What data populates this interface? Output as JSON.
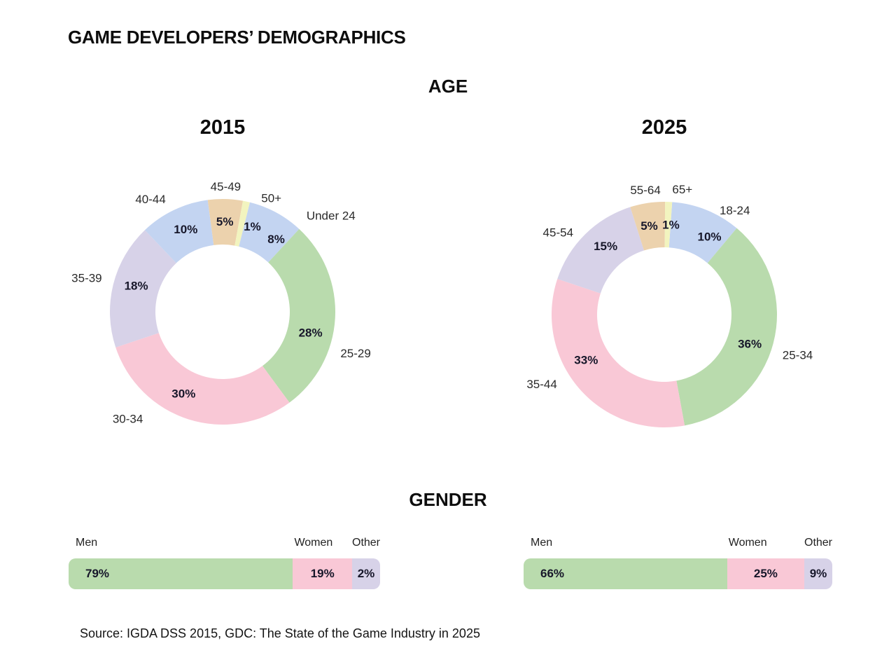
{
  "page": {
    "title": "GAME DEVELOPERS’ DEMOGRAPHICS",
    "source": "Source: IGDA DSS 2015, GDC: The State of the Game Industry in 2025"
  },
  "sections": {
    "age": {
      "heading": "AGE"
    },
    "gender": {
      "heading": "GENDER"
    }
  },
  "palette": {
    "green": "#b9dbad",
    "pink": "#f9c8d6",
    "lavender": "#d7d2e8",
    "blue": "#c3d4f1",
    "tan": "#ecd2ad",
    "yellow": "#f2f4bf",
    "label_dark": "#17172a"
  },
  "chart_data": [
    {
      "id": "age-2015",
      "type": "pie",
      "subtype": "donut",
      "title": "2015",
      "section": "AGE",
      "categories": [
        "Under 24",
        "25-29",
        "30-34",
        "35-39",
        "40-44",
        "45-49",
        "50+"
      ],
      "values": [
        8,
        28,
        30,
        18,
        10,
        5,
        1
      ],
      "value_labels": [
        "8%",
        "28%",
        "30%",
        "18%",
        "10%",
        "5%",
        "1%"
      ],
      "colors": [
        "blue",
        "green",
        "pink",
        "lavender",
        "blue",
        "tan",
        "yellow"
      ],
      "layout": {
        "start_deg": 14,
        "out_nudge_deg": [
          20,
          14,
          24,
          0,
          -7,
          0,
          11
        ],
        "out_r": [
          207,
          199,
          204,
          200,
          191,
          179,
          177
        ],
        "pct_nudge_deg": [
          8,
          10,
          8,
          3,
          1.5,
          0,
          7
        ]
      }
    },
    {
      "id": "age-2025",
      "type": "pie",
      "subtype": "donut",
      "title": "2025",
      "section": "AGE",
      "categories": [
        "18-24",
        "25-34",
        "35-44",
        "45-54",
        "55-64",
        "65+"
      ],
      "values": [
        10,
        36,
        33,
        15,
        5,
        1
      ],
      "value_labels": [
        "10%",
        "36%",
        "33%",
        "15%",
        "5%",
        "1%"
      ],
      "colors": [
        "blue",
        "green",
        "pink",
        "lavender",
        "tan",
        "yellow"
      ],
      "layout": {
        "start_deg": 4,
        "out_nudge_deg": [
          12,
          2,
          11.5,
          -7.6,
          0,
          6
        ],
        "out_r": [
          180,
          199,
          201,
          192,
          180,
          181
        ],
        "pct_nudge_deg": [
          8,
          4,
          11,
          4,
          -1,
          2
        ]
      }
    },
    {
      "id": "gender-2015",
      "type": "bar",
      "subtype": "stacked-horizontal",
      "title": "2015",
      "section": "GENDER",
      "categories": [
        "Men",
        "Women",
        "Other"
      ],
      "values": [
        79,
        19,
        2
      ],
      "value_labels": [
        "79%",
        "19%",
        "2%"
      ],
      "colors": [
        "green",
        "pink",
        "lavender"
      ]
    },
    {
      "id": "gender-2025",
      "type": "bar",
      "subtype": "stacked-horizontal",
      "title": "2025",
      "section": "GENDER",
      "categories": [
        "Men",
        "Women",
        "Other"
      ],
      "values": [
        66,
        25,
        9
      ],
      "value_labels": [
        "66%",
        "25%",
        "9%"
      ],
      "colors": [
        "green",
        "pink",
        "lavender"
      ]
    }
  ]
}
